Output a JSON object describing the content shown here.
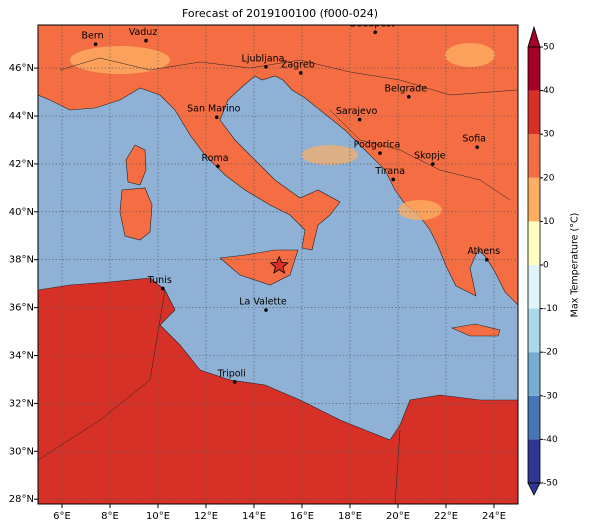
{
  "title": "Forecast of 2019100100 (f000-024)",
  "map": {
    "lonlim": [
      5,
      25
    ],
    "latlim": [
      27.8,
      47.8
    ],
    "grid": true,
    "xticks": [
      {
        "value": 6,
        "label": "6°E"
      },
      {
        "value": 8,
        "label": "8°E"
      },
      {
        "value": 10,
        "label": "10°E"
      },
      {
        "value": 12,
        "label": "12°E"
      },
      {
        "value": 14,
        "label": "14°E"
      },
      {
        "value": 16,
        "label": "16°E"
      },
      {
        "value": 18,
        "label": "18°E"
      },
      {
        "value": 20,
        "label": "20°E"
      },
      {
        "value": 22,
        "label": "22°E"
      },
      {
        "value": 24,
        "label": "24°E"
      }
    ],
    "yticks": [
      {
        "value": 28,
        "label": "28°N"
      },
      {
        "value": 30,
        "label": "30°N"
      },
      {
        "value": 32,
        "label": "32°N"
      },
      {
        "value": 34,
        "label": "34°N"
      },
      {
        "value": 36,
        "label": "36°N"
      },
      {
        "value": 38,
        "label": "38°N"
      },
      {
        "value": 40,
        "label": "40°N"
      },
      {
        "value": 42,
        "label": "42°N"
      },
      {
        "value": 44,
        "label": "44°N"
      },
      {
        "value": 46,
        "label": "46°N"
      }
    ],
    "cities": [
      {
        "name": "Bern",
        "lon": 7.4,
        "lat": 47.0
      },
      {
        "name": "Vaduz",
        "lon": 9.5,
        "lat": 47.15
      },
      {
        "name": "Budapest",
        "lon": 19.05,
        "lat": 47.5
      },
      {
        "name": "Ljubljana",
        "lon": 14.5,
        "lat": 46.05
      },
      {
        "name": "Zagreb",
        "lon": 15.95,
        "lat": 45.8
      },
      {
        "name": "Belgrade",
        "lon": 20.45,
        "lat": 44.8
      },
      {
        "name": "San Marino",
        "lon": 12.45,
        "lat": 43.95
      },
      {
        "name": "Sarajevo",
        "lon": 18.4,
        "lat": 43.85
      },
      {
        "name": "Sofia",
        "lon": 23.3,
        "lat": 42.7
      },
      {
        "name": "Podgorica",
        "lon": 19.25,
        "lat": 42.45
      },
      {
        "name": "Skopje",
        "lon": 21.45,
        "lat": 42.0
      },
      {
        "name": "Roma",
        "lon": 12.5,
        "lat": 41.9
      },
      {
        "name": "Tirana",
        "lon": 19.8,
        "lat": 41.35
      },
      {
        "name": "Athens",
        "lon": 23.7,
        "lat": 38.0
      },
      {
        "name": "Tunis",
        "lon": 10.2,
        "lat": 36.8
      },
      {
        "name": "La Valette",
        "lon": 14.5,
        "lat": 35.9
      },
      {
        "name": "Tripoli",
        "lon": 13.2,
        "lat": 32.9
      }
    ],
    "marker": {
      "lon": 15.05,
      "lat": 37.75
    }
  },
  "colorbar": {
    "label": "Max Temperature (°C)",
    "lim": [
      -50,
      50
    ],
    "ticks": [
      -50,
      -40,
      -30,
      -20,
      -10,
      0,
      10,
      20,
      30,
      40,
      50
    ],
    "colors": [
      "#313695",
      "#4575b4",
      "#74add1",
      "#abd9e9",
      "#e0f3f8",
      "#ffffbf",
      "#fdae61",
      "#f46d43",
      "#d73027",
      "#a50026"
    ]
  }
}
